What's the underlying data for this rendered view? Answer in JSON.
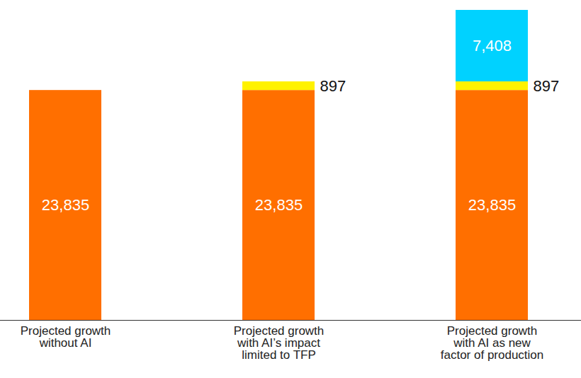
{
  "chart_data": {
    "type": "bar",
    "stacked": true,
    "data_labels": true,
    "tick_labels": "x",
    "categories": [
      "Projected growth\nwithout AI",
      "Projected growth\nwith AI’s impact\nlimited to TFP",
      "Projected growth\nwith AI as new\nfactor of production"
    ],
    "ylim": [
      0,
      32140
    ],
    "series": [
      {
        "color": "#ff6f00",
        "values": [
          23835,
          23835,
          23835
        ],
        "value_labels": [
          "23,835",
          "23,835",
          "23,835"
        ]
      },
      {
        "color": "#fff200",
        "values": [
          null,
          897,
          897
        ],
        "value_labels": [
          null,
          "897",
          "897"
        ]
      },
      {
        "color": "#00d2ff",
        "values": [
          null,
          null,
          7408
        ],
        "value_labels": [
          null,
          null,
          "7,408"
        ]
      }
    ]
  }
}
